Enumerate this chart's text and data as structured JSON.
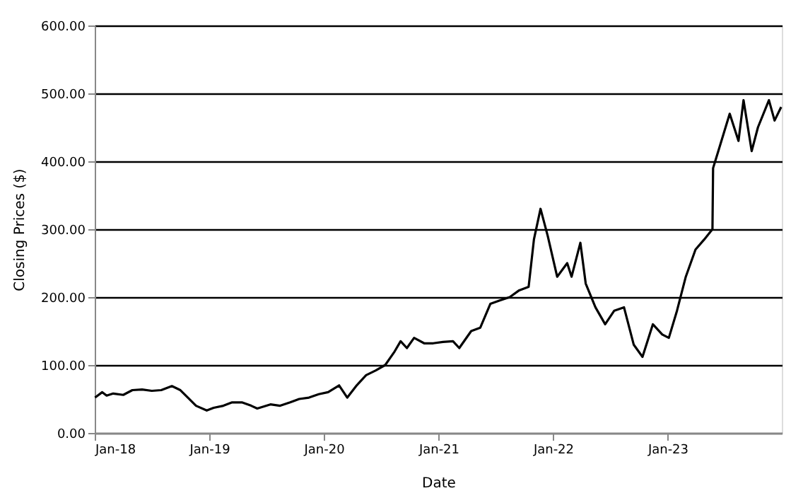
{
  "chart_data": {
    "type": "line",
    "xlabel": "Date",
    "ylabel": "Closing Prices ($)",
    "x": [
      "2018-01-02",
      "2018-01-25",
      "2018-02-08",
      "2018-03-01",
      "2018-04-02",
      "2018-05-01",
      "2018-06-01",
      "2018-07-02",
      "2018-08-01",
      "2018-09-04",
      "2018-10-01",
      "2018-10-25",
      "2018-11-20",
      "2018-12-24",
      "2019-01-15",
      "2019-02-15",
      "2019-03-15",
      "2019-04-15",
      "2019-05-15",
      "2019-06-03",
      "2019-07-15",
      "2019-08-15",
      "2019-09-16",
      "2019-10-15",
      "2019-11-15",
      "2019-12-16",
      "2020-01-15",
      "2020-02-19",
      "2020-03-16",
      "2020-04-15",
      "2020-05-15",
      "2020-06-15",
      "2020-07-15",
      "2020-08-14",
      "2020-09-02",
      "2020-09-22",
      "2020-10-15",
      "2020-11-16",
      "2020-12-15",
      "2021-01-15",
      "2021-02-16",
      "2021-03-08",
      "2021-04-15",
      "2021-05-14",
      "2021-06-15",
      "2021-07-15",
      "2021-08-16",
      "2021-09-15",
      "2021-10-15",
      "2021-11-01",
      "2021-11-22",
      "2021-12-15",
      "2022-01-14",
      "2022-02-15",
      "2022-03-01",
      "2022-03-29",
      "2022-04-15",
      "2022-05-16",
      "2022-06-16",
      "2022-07-15",
      "2022-08-15",
      "2022-09-15",
      "2022-10-13",
      "2022-11-15",
      "2022-12-15",
      "2023-01-05",
      "2023-01-31",
      "2023-02-28",
      "2023-03-31",
      "2023-04-28",
      "2023-05-24",
      "2023-05-26",
      "2023-06-15",
      "2023-07-18",
      "2023-08-15",
      "2023-08-31",
      "2023-09-26",
      "2023-10-16",
      "2023-11-20",
      "2023-12-08",
      "2023-12-29"
    ],
    "series": [
      {
        "color": "#000000",
        "values": [
          52,
          60,
          55,
          58,
          56,
          63,
          64,
          62,
          63,
          69,
          63,
          52,
          40,
          33,
          37,
          40,
          45,
          45,
          40,
          36,
          42,
          40,
          45,
          50,
          52,
          57,
          60,
          70,
          52,
          70,
          85,
          92,
          100,
          120,
          135,
          125,
          140,
          132,
          132,
          134,
          135,
          125,
          150,
          155,
          190,
          195,
          200,
          210,
          215,
          285,
          330,
          290,
          230,
          250,
          230,
          280,
          220,
          185,
          160,
          180,
          185,
          130,
          112,
          160,
          145,
          140,
          180,
          230,
          270,
          285,
          300,
          390,
          420,
          470,
          430,
          490,
          415,
          450,
          490,
          460,
          480
        ]
      }
    ],
    "ylim": [
      0,
      600
    ],
    "yticks": [
      {
        "value": 0,
        "label": "0.00"
      },
      {
        "value": 100,
        "label": "100.00"
      },
      {
        "value": 200,
        "label": "200.00"
      },
      {
        "value": 300,
        "label": "300.00"
      },
      {
        "value": 400,
        "label": "400.00"
      },
      {
        "value": 500,
        "label": "500.00"
      },
      {
        "value": 600,
        "label": "600.00"
      }
    ],
    "xlim": [
      "2018-01-01",
      "2023-12-31"
    ],
    "xticks": [
      {
        "value": "2018-01-01",
        "label": "Jan-18"
      },
      {
        "value": "2019-01-01",
        "label": "Jan-19"
      },
      {
        "value": "2020-01-01",
        "label": "Jan-20"
      },
      {
        "value": "2021-01-01",
        "label": "Jan-21"
      },
      {
        "value": "2022-01-01",
        "label": "Jan-22"
      },
      {
        "value": "2023-01-01",
        "label": "Jan-23"
      }
    ],
    "grid": "y",
    "marker": "none",
    "line_style": "solid"
  }
}
